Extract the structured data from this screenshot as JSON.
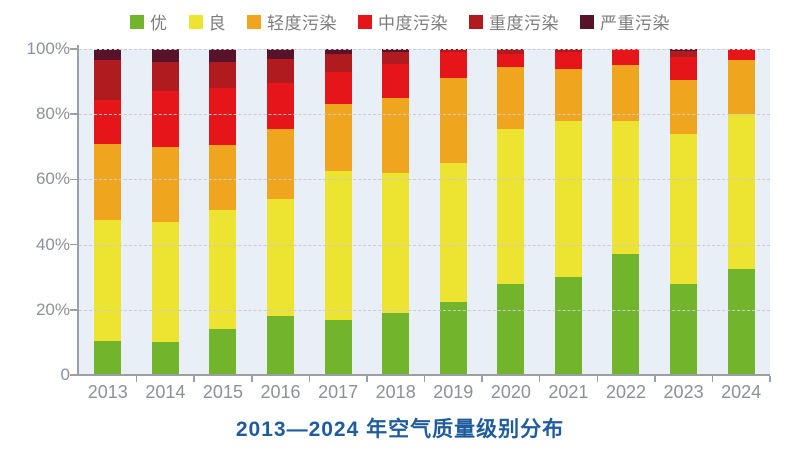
{
  "title": {
    "text": "2013—2024 年空气质量级别分布",
    "color": "#1f5c9d"
  },
  "legend": [
    {
      "label": "优",
      "color": "#72b52d"
    },
    {
      "label": "良",
      "color": "#ece431"
    },
    {
      "label": "轻度污染",
      "color": "#f0a51f"
    },
    {
      "label": "中度污染",
      "color": "#e6151a"
    },
    {
      "label": "重度污染",
      "color": "#b01b20"
    },
    {
      "label": "严重污染",
      "color": "#571329"
    }
  ],
  "axes": {
    "y_labels": [
      "100%",
      "80%",
      "60%",
      "40%",
      "20%",
      "0"
    ],
    "y_values": [
      100,
      80,
      60,
      40,
      20,
      0
    ],
    "x_labels": [
      "2013",
      "2014",
      "2015",
      "2016",
      "2017",
      "2018",
      "2019",
      "2020",
      "2021",
      "2022",
      "2023",
      "2024"
    ]
  },
  "chart_data": {
    "type": "bar",
    "stacked": true,
    "unit": "percent",
    "title": "2013—2024 年空气质量级别分布",
    "categories": [
      "2013",
      "2014",
      "2015",
      "2016",
      "2017",
      "2018",
      "2019",
      "2020",
      "2021",
      "2022",
      "2023",
      "2024"
    ],
    "series": [
      {
        "name": "优",
        "color": "#72b52d",
        "values": [
          10.5,
          10,
          14,
          18,
          17,
          19,
          22.5,
          28,
          30,
          37,
          28,
          32.5
        ]
      },
      {
        "name": "良",
        "color": "#ece431",
        "values": [
          37,
          37,
          36.5,
          36,
          45.5,
          43,
          42.5,
          47.5,
          48,
          41,
          46,
          47.5
        ]
      },
      {
        "name": "轻度污染",
        "color": "#f0a51f",
        "values": [
          23.5,
          23,
          20,
          21.5,
          20.5,
          23,
          26,
          19,
          16,
          17,
          16.5,
          16.5
        ]
      },
      {
        "name": "中度污染",
        "color": "#e6151a",
        "values": [
          13.5,
          17,
          17.5,
          14,
          10,
          10.5,
          8,
          4,
          5,
          5,
          7,
          3.5
        ]
      },
      {
        "name": "重度污染",
        "color": "#b01b20",
        "values": [
          12,
          9,
          8,
          7.5,
          5.5,
          3.5,
          0.7,
          1.2,
          0.8,
          0,
          2,
          0
        ]
      },
      {
        "name": "严重污染",
        "color": "#571329",
        "values": [
          3.5,
          4,
          4,
          3,
          1.5,
          1,
          0.3,
          0.3,
          0.2,
          0,
          0.5,
          0
        ]
      }
    ],
    "ylim": [
      0,
      100
    ],
    "yticks_percent": [
      0,
      20,
      40,
      60,
      80,
      100
    ],
    "grid": "dashed-horizontal",
    "legend_position": "top",
    "plot_background": "#e9eff7"
  }
}
